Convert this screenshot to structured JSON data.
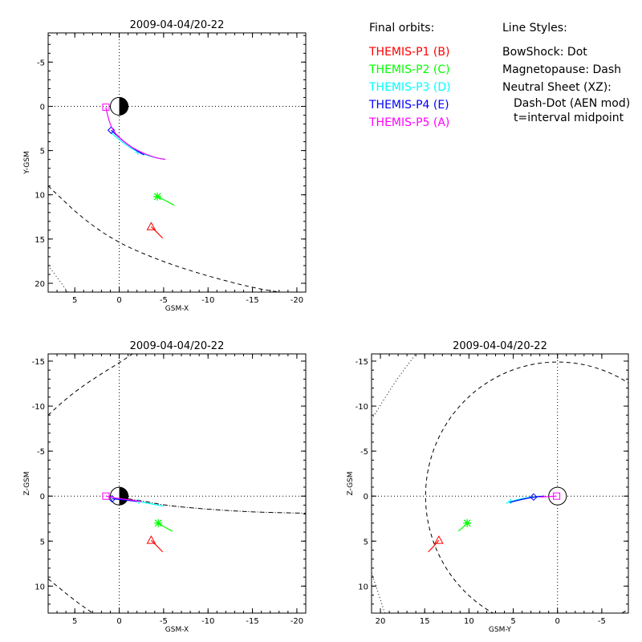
{
  "legend": {
    "orbits_heading": "Final orbits:",
    "orbits": [
      {
        "label": "THEMIS-P1  (B)",
        "color": "#ff0000"
      },
      {
        "label": "THEMIS-P2  (C)",
        "color": "#00ff00"
      },
      {
        "label": "THEMIS-P3  (D)",
        "color": "#00ffff"
      },
      {
        "label": "THEMIS-P4  (E)",
        "color": "#0000ff"
      },
      {
        "label": "THEMIS-P5  (A)",
        "color": "#ff00ff"
      }
    ],
    "styles_heading": "Line Styles:",
    "styles": [
      {
        "label": "BowShock: Dot",
        "indent": false
      },
      {
        "label": "Magnetopause: Dash",
        "indent": false
      },
      {
        "label": "Neutral Sheet (XZ):",
        "indent": false
      },
      {
        "label": "Dash-Dot (AEN mod)",
        "indent": true
      },
      {
        "label": "t=interval midpoint",
        "indent": true
      }
    ]
  },
  "chart_data": [
    {
      "type": "line",
      "view": "XY",
      "title": "2009-04-04/20-22",
      "xlabel": "GSM-X",
      "ylabel": "Y-GSM",
      "xlim": [
        8,
        -21
      ],
      "ylim": [
        -8.3,
        21
      ],
      "xticks": [
        5,
        0,
        -5,
        -10,
        -15,
        -20
      ],
      "yticks": [
        -5,
        0,
        5,
        10,
        15,
        20
      ],
      "xtick_labels": [
        "5",
        "0",
        "-5",
        "-10",
        "-15",
        "-20"
      ],
      "ytick_labels": [
        "-5",
        "0",
        "5",
        "10",
        "15",
        "20"
      ],
      "grid": "dotted zero lines",
      "magnetopause": [
        [
          8,
          9.0
        ],
        [
          4,
          12.8
        ],
        [
          0,
          15.5
        ],
        [
          -5,
          17.6
        ],
        [
          -10,
          19.2
        ],
        [
          -15,
          20.5
        ],
        [
          -18,
          21
        ]
      ],
      "bowshock": [
        [
          8,
          18.0
        ],
        [
          6.5,
          20.0
        ],
        [
          5.8,
          21
        ]
      ],
      "series": [
        {
          "name": "THEMIS-P1",
          "color": "#ff0000",
          "symbol": "triangle",
          "marker": [
            -3.6,
            13.6
          ],
          "path": [
            [
              -3.6,
              13.6
            ],
            [
              -4.2,
              14.2
            ],
            [
              -4.9,
              14.9
            ]
          ]
        },
        {
          "name": "THEMIS-P2",
          "color": "#00ff00",
          "symbol": "asterisk",
          "marker": [
            -4.3,
            10.2
          ],
          "path": [
            [
              -4.3,
              10.2
            ],
            [
              -5.3,
              10.7
            ],
            [
              -6.2,
              11.2
            ]
          ]
        },
        {
          "name": "THEMIS-P3",
          "color": "#00ffff",
          "symbol": "star",
          "marker": [
            -2.1,
            5.2
          ],
          "path": [
            [
              0.9,
              3.0
            ],
            [
              -0.5,
              4.2
            ],
            [
              -2.1,
              5.2
            ],
            [
              -4.0,
              5.8
            ],
            [
              -5.2,
              6.0
            ]
          ]
        },
        {
          "name": "THEMIS-P4",
          "color": "#0000ff",
          "symbol": "diamond",
          "marker": [
            0.9,
            2.7
          ],
          "path": [
            [
              0.9,
              2.7
            ],
            [
              -0.5,
              4.0
            ],
            [
              -2.1,
              5.1
            ],
            [
              -2.8,
              5.5
            ]
          ]
        },
        {
          "name": "THEMIS-P5",
          "color": "#ff00ff",
          "symbol": "square",
          "marker": [
            1.5,
            0.1
          ],
          "path": [
            [
              1.5,
              0.1
            ],
            [
              1.2,
              1.5
            ],
            [
              0.7,
              2.8
            ],
            [
              -0.5,
              4.0
            ],
            [
              -2.0,
              5.0
            ],
            [
              -4.0,
              5.8
            ],
            [
              -5.2,
              6.0
            ]
          ]
        }
      ]
    },
    {
      "type": "line",
      "view": "XZ",
      "title": "2009-04-04/20-22",
      "xlabel": "GSM-X",
      "ylabel": "Z-GSM",
      "xlim": [
        8,
        -21
      ],
      "ylim": [
        -15.8,
        13
      ],
      "xticks": [
        5,
        0,
        -5,
        -10,
        -15,
        -20
      ],
      "yticks": [
        10,
        5,
        0,
        -5,
        -10,
        -15
      ],
      "xtick_labels": [
        "5",
        "0",
        "-5",
        "-10",
        "-15",
        "-20"
      ],
      "ytick_labels": [
        "10",
        "5",
        "0",
        "-5",
        "-10",
        "-15"
      ],
      "grid": "dotted zero lines",
      "magnetopause_upper": [
        [
          8,
          9.2
        ],
        [
          7,
          10.0
        ],
        [
          5,
          11.6
        ],
        [
          3,
          13
        ]
      ],
      "magnetopause_lower": [
        [
          8,
          -9.0
        ],
        [
          6,
          -10.8
        ],
        [
          4,
          -12.3
        ],
        [
          2,
          -13.6
        ],
        [
          0,
          -14.8
        ],
        [
          -1.5,
          -15.8
        ]
      ],
      "neutral_sheet": [
        [
          -1,
          0.3
        ],
        [
          -3,
          0.6
        ],
        [
          -5,
          1.0
        ],
        [
          -8,
          1.3
        ],
        [
          -12,
          1.6
        ],
        [
          -16,
          1.8
        ],
        [
          -21,
          1.9
        ]
      ],
      "series": [
        {
          "name": "THEMIS-P1",
          "color": "#ff0000",
          "symbol": "triangle",
          "marker": [
            -3.6,
            4.9
          ],
          "path": [
            [
              -3.6,
              4.9
            ],
            [
              -4.3,
              5.6
            ],
            [
              -4.9,
              6.2
            ]
          ]
        },
        {
          "name": "THEMIS-P2",
          "color": "#00ff00",
          "symbol": "asterisk",
          "marker": [
            -4.4,
            3.0
          ],
          "path": [
            [
              -4.4,
              3.0
            ],
            [
              -5.2,
              3.5
            ],
            [
              -6.0,
              3.9
            ]
          ]
        },
        {
          "name": "THEMIS-P3",
          "color": "#00ffff",
          "symbol": "star",
          "marker": [
            -2.2,
            0.6
          ],
          "path": [
            [
              0.8,
              0.3
            ],
            [
              -1.0,
              0.45
            ],
            [
              -2.2,
              0.6
            ],
            [
              -3.8,
              0.9
            ],
            [
              -5.0,
              1.1
            ]
          ]
        },
        {
          "name": "THEMIS-P4",
          "color": "#0000ff",
          "symbol": "diamond",
          "marker": [
            0.8,
            0.3
          ],
          "path": [
            [
              0.8,
              0.3
            ],
            [
              -0.8,
              0.45
            ],
            [
              -2.0,
              0.6
            ]
          ]
        },
        {
          "name": "THEMIS-P5",
          "color": "#ff00ff",
          "symbol": "square",
          "marker": [
            1.5,
            0.0
          ],
          "path": [
            [
              1.5,
              0.0
            ],
            [
              0.5,
              0.2
            ],
            [
              -1.0,
              0.4
            ],
            [
              -2.5,
              0.6
            ]
          ]
        }
      ]
    },
    {
      "type": "line",
      "view": "YZ",
      "title": "2009-04-04/20-22",
      "xlabel": "GSM-Y",
      "ylabel": "Z-GSM",
      "xlim": [
        21,
        -8
      ],
      "ylim": [
        -15.8,
        13
      ],
      "xticks": [
        20,
        15,
        10,
        5,
        0,
        -5
      ],
      "yticks": [
        10,
        5,
        0,
        -5,
        -10,
        -15
      ],
      "xtick_labels": [
        "20",
        "15",
        "10",
        "5",
        "0",
        "-5"
      ],
      "ytick_labels": [
        "10",
        "5",
        "0",
        "-5",
        "-10",
        "-15"
      ],
      "grid": "dotted zero lines",
      "magnetopause_center": [
        0,
        0
      ],
      "magnetopause_radius": 14.9,
      "bowshock": [
        [
          19.5,
          13
        ],
        [
          20.5,
          10
        ],
        [
          21,
          8.5
        ]
      ],
      "bowshock_lower": [
        [
          21,
          -8.5
        ],
        [
          18.5,
          -12.5
        ],
        [
          16,
          -15.8
        ]
      ],
      "series": [
        {
          "name": "THEMIS-P1",
          "color": "#ff0000",
          "symbol": "triangle",
          "marker": [
            13.4,
            4.9
          ],
          "path": [
            [
              13.4,
              4.9
            ],
            [
              14.0,
              5.6
            ],
            [
              14.6,
              6.2
            ]
          ]
        },
        {
          "name": "THEMIS-P2",
          "color": "#00ff00",
          "symbol": "asterisk",
          "marker": [
            10.2,
            3.0
          ],
          "path": [
            [
              10.2,
              3.0
            ],
            [
              10.7,
              3.5
            ],
            [
              11.2,
              3.9
            ]
          ]
        },
        {
          "name": "THEMIS-P3",
          "color": "#00ffff",
          "symbol": "star",
          "marker": [
            5.3,
            0.6
          ],
          "path": [
            [
              5.8,
              0.8
            ],
            [
              5.3,
              0.6
            ],
            [
              4.2,
              0.3
            ],
            [
              3.0,
              0.1
            ],
            [
              1.5,
              0.0
            ]
          ]
        },
        {
          "name": "THEMIS-P4",
          "color": "#0000ff",
          "symbol": "diamond",
          "marker": [
            2.7,
            0.1
          ],
          "path": [
            [
              5.4,
              0.7
            ],
            [
              4.2,
              0.4
            ],
            [
              2.7,
              0.1
            ],
            [
              1.5,
              0.0
            ]
          ]
        },
        {
          "name": "THEMIS-P5",
          "color": "#ff00ff",
          "symbol": "square",
          "marker": [
            0.1,
            0.0
          ],
          "path": [
            [
              2.0,
              0.1
            ],
            [
              1.0,
              0.05
            ],
            [
              0.1,
              0.0
            ]
          ]
        }
      ]
    }
  ]
}
